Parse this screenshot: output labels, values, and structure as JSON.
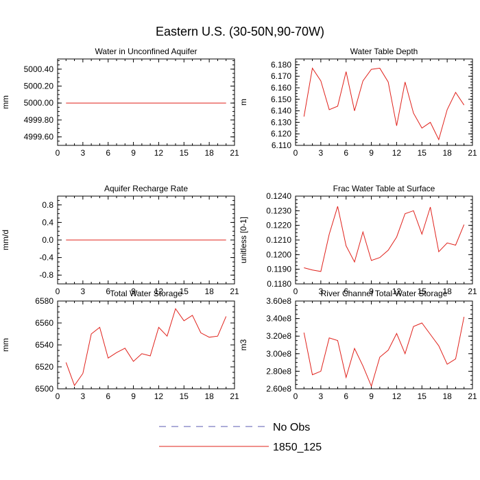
{
  "figure": {
    "title": "Eastern U.S. (30-50N,90-70W)",
    "legend": {
      "entries": [
        {
          "label": "No Obs",
          "color": "#5a5ab0",
          "dash": true
        },
        {
          "label": "1850_125",
          "color": "#e0201a",
          "dash": false
        }
      ]
    }
  },
  "chart_data": [
    {
      "type": "line",
      "title": "Water in Unconfined Aquifer",
      "ylabel": "mm",
      "xlim": [
        0,
        21
      ],
      "ylim": [
        4999.5,
        5000.52
      ],
      "x_ticks": [
        0,
        3,
        6,
        9,
        12,
        15,
        18,
        21
      ],
      "y_ticks": [
        4999.6,
        4999.8,
        5000.0,
        5000.2,
        5000.4
      ],
      "y_tick_labels": [
        "4999.60",
        "4999.80",
        "5000.00",
        "5000.20",
        "5000.40"
      ],
      "series": [
        {
          "name": "1850_125",
          "color": "#e0201a",
          "x": [
            1,
            2,
            3,
            4,
            5,
            6,
            7,
            8,
            9,
            10,
            11,
            12,
            13,
            14,
            15,
            16,
            17,
            18,
            19,
            20
          ],
          "y": [
            5000,
            5000,
            5000,
            5000,
            5000,
            5000,
            5000,
            5000,
            5000,
            5000,
            5000,
            5000,
            5000,
            5000,
            5000,
            5000,
            5000,
            5000,
            5000,
            5000
          ]
        }
      ]
    },
    {
      "type": "line",
      "title": "Water Table Depth",
      "ylabel": "m",
      "xlim": [
        0,
        21
      ],
      "ylim": [
        6.11,
        6.185
      ],
      "x_ticks": [
        0,
        3,
        6,
        9,
        12,
        15,
        18,
        21
      ],
      "y_ticks": [
        6.11,
        6.12,
        6.13,
        6.14,
        6.15,
        6.16,
        6.17,
        6.18
      ],
      "y_tick_labels": [
        "6.110",
        "6.120",
        "6.130",
        "6.140",
        "6.150",
        "6.160",
        "6.170",
        "6.180"
      ],
      "series": [
        {
          "name": "1850_125",
          "color": "#e0201a",
          "x": [
            1,
            2,
            3,
            4,
            5,
            6,
            7,
            8,
            9,
            10,
            11,
            12,
            13,
            14,
            15,
            16,
            17,
            18,
            19,
            20
          ],
          "y": [
            6.135,
            6.177,
            6.166,
            6.141,
            6.144,
            6.174,
            6.14,
            6.166,
            6.176,
            6.177,
            6.165,
            6.127,
            6.165,
            6.138,
            6.125,
            6.13,
            6.115,
            6.141,
            6.156,
            6.145
          ]
        }
      ]
    },
    {
      "type": "line",
      "title": "Aquifer Recharge Rate",
      "ylabel": "mm/d",
      "xlim": [
        0,
        21
      ],
      "ylim": [
        -1.0,
        1.0
      ],
      "x_ticks": [
        0,
        3,
        6,
        9,
        12,
        15,
        18,
        21
      ],
      "y_ticks": [
        -0.8,
        -0.4,
        0.0,
        0.4,
        0.8
      ],
      "y_tick_labels": [
        "-0.8",
        "-0.4",
        "0.0",
        "0.4",
        "0.8"
      ],
      "series": [
        {
          "name": "1850_125",
          "color": "#e0201a",
          "x": [
            1,
            2,
            3,
            4,
            5,
            6,
            7,
            8,
            9,
            10,
            11,
            12,
            13,
            14,
            15,
            16,
            17,
            18,
            19,
            20
          ],
          "y": [
            0,
            0,
            0,
            0,
            0,
            0,
            0,
            0,
            0,
            0,
            0,
            0,
            0,
            0,
            0,
            0,
            0,
            0,
            0,
            0
          ]
        }
      ]
    },
    {
      "type": "line",
      "title": "Frac Water Table at Surface",
      "ylabel": "unitless [0-1]",
      "xlim": [
        0,
        21
      ],
      "ylim": [
        0.118,
        0.124
      ],
      "x_ticks": [
        0,
        3,
        6,
        9,
        12,
        15,
        18,
        21
      ],
      "y_ticks": [
        0.118,
        0.119,
        0.12,
        0.121,
        0.122,
        0.123,
        0.124
      ],
      "y_tick_labels": [
        "0.1180",
        "0.1190",
        "0.1200",
        "0.1210",
        "0.1220",
        "0.1230",
        "0.1240"
      ],
      "series": [
        {
          "name": "1850_125",
          "color": "#e0201a",
          "x": [
            1,
            2,
            3,
            4,
            5,
            6,
            7,
            8,
            9,
            10,
            11,
            12,
            13,
            14,
            15,
            16,
            17,
            18,
            19,
            20
          ],
          "y": [
            0.1191,
            0.11895,
            0.11885,
            0.1214,
            0.1233,
            0.1206,
            0.1195,
            0.12155,
            0.1196,
            0.1198,
            0.1203,
            0.1212,
            0.1228,
            0.123,
            0.1214,
            0.12325,
            0.1202,
            0.1208,
            0.12065,
            0.12205
          ]
        }
      ]
    },
    {
      "type": "line",
      "title": "Total Water Storage",
      "ylabel": "mm",
      "xlim": [
        0,
        21
      ],
      "ylim": [
        6500,
        6580
      ],
      "x_ticks": [
        0,
        3,
        6,
        9,
        12,
        15,
        18,
        21
      ],
      "y_ticks": [
        6500,
        6520,
        6540,
        6560,
        6580
      ],
      "y_tick_labels": [
        "6500",
        "6520",
        "6540",
        "6560",
        "6580"
      ],
      "series": [
        {
          "name": "1850_125",
          "color": "#e0201a",
          "x": [
            1,
            2,
            3,
            4,
            5,
            6,
            7,
            8,
            9,
            10,
            11,
            12,
            13,
            14,
            15,
            16,
            17,
            18,
            19,
            20
          ],
          "y": [
            6524,
            6503,
            6514,
            6550,
            6556,
            6528,
            6533,
            6537,
            6525,
            6532,
            6530,
            6556,
            6548,
            6573,
            6562,
            6567,
            6551,
            6547,
            6548,
            6566
          ]
        }
      ]
    },
    {
      "type": "line",
      "title": "River Channel Total Water Storage",
      "ylabel": "m3",
      "xlim": [
        0,
        21
      ],
      "ylim": [
        260000000.0,
        360000000.0
      ],
      "x_ticks": [
        0,
        3,
        6,
        9,
        12,
        15,
        18,
        21
      ],
      "y_ticks": [
        260000000.0,
        280000000.0,
        300000000.0,
        320000000.0,
        340000000.0,
        360000000.0
      ],
      "y_tick_labels": [
        "2.60e8",
        "2.80e8",
        "3.00e8",
        "3.20e8",
        "3.40e8",
        "3.60e8"
      ],
      "series": [
        {
          "name": "1850_125",
          "color": "#e0201a",
          "x": [
            1,
            2,
            3,
            4,
            5,
            6,
            7,
            8,
            9,
            10,
            11,
            12,
            13,
            14,
            15,
            16,
            17,
            18,
            19,
            20
          ],
          "y": [
            324000000.0,
            276000000.0,
            280000000.0,
            318000000.0,
            315000000.0,
            273000000.0,
            306000000.0,
            286000000.0,
            263000000.0,
            296000000.0,
            304000000.0,
            323000000.0,
            300000000.0,
            331000000.0,
            335000000.0,
            322000000.0,
            309000000.0,
            288000000.0,
            294000000.0,
            342000000.0
          ]
        }
      ]
    }
  ]
}
